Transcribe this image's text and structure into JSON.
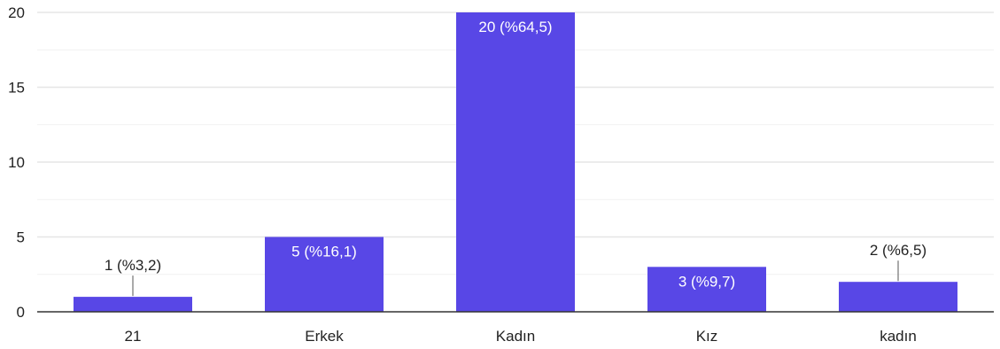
{
  "chart_data": {
    "type": "bar",
    "categories": [
      "21",
      "Erkek",
      "Kadın",
      "Kız",
      "kadın"
    ],
    "values": [
      1,
      5,
      20,
      3,
      2
    ],
    "data_labels": [
      "1 (%3,2)",
      "5 (%16,1)",
      "20 (%64,5)",
      "3 (%9,7)",
      "2 (%6,5)"
    ],
    "yticks": [
      0,
      5,
      10,
      15,
      20
    ],
    "ylim": [
      0,
      20
    ],
    "grid": true,
    "colors": {
      "bar": "#5847E6",
      "grid": "#e6e6e6",
      "axis": "#333333"
    }
  }
}
